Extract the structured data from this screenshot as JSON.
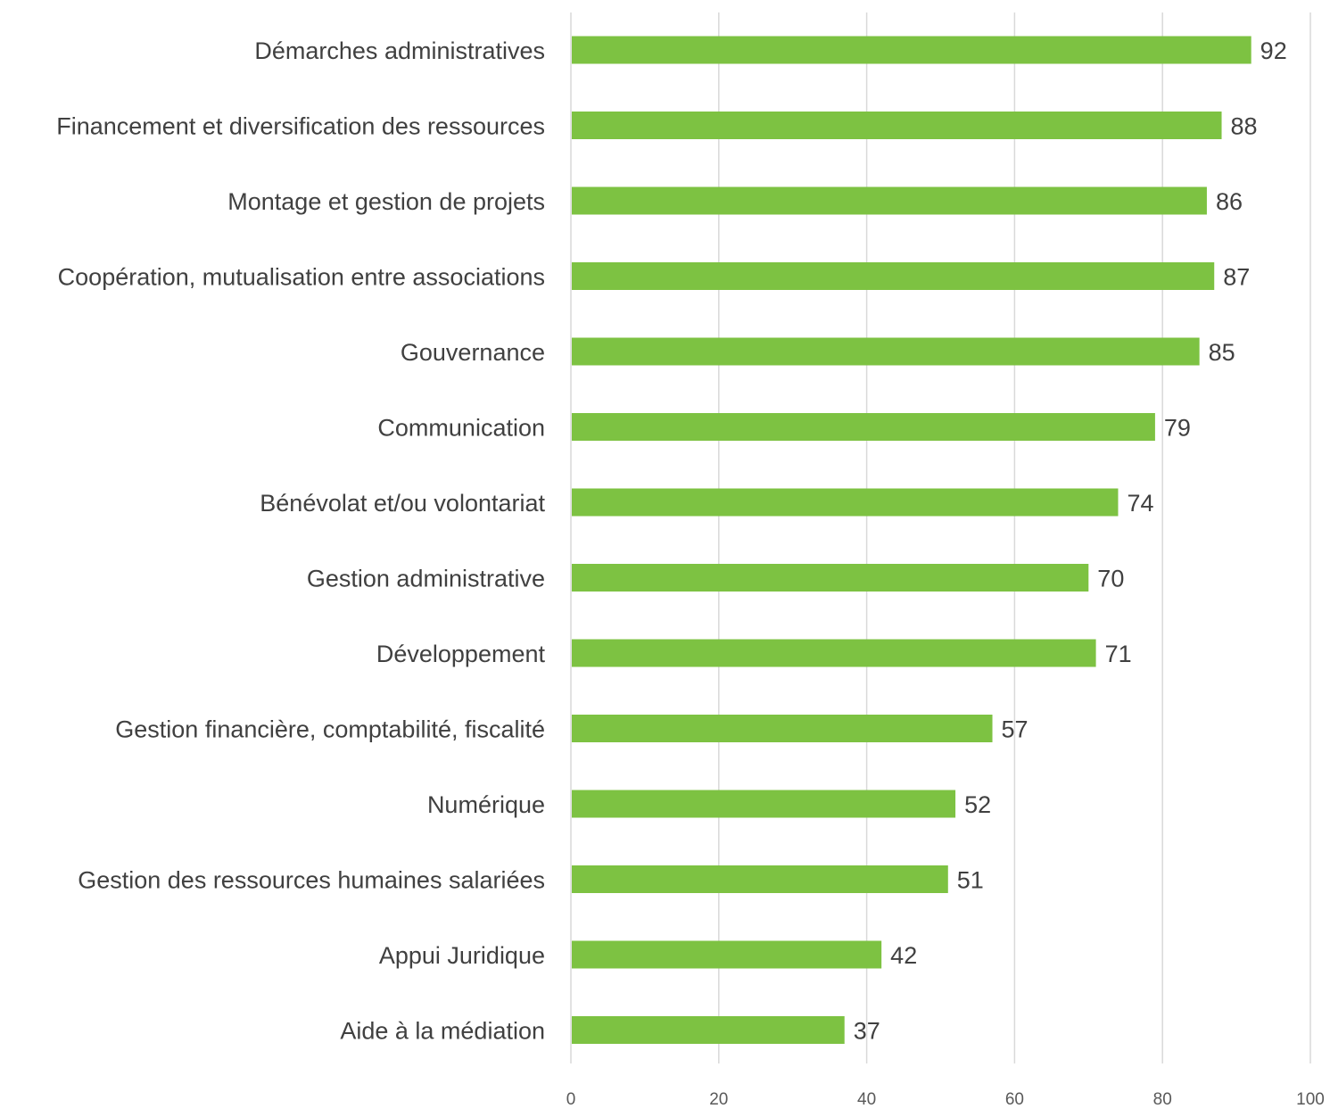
{
  "chart_data": {
    "type": "bar",
    "orientation": "horizontal",
    "categories": [
      "Démarches administratives",
      "Financement et diversification des ressources",
      "Montage et gestion de projets",
      "Coopération, mutualisation entre associations",
      "Gouvernance",
      "Communication",
      "Bénévolat et/ou volontariat",
      "Gestion administrative",
      "Développement",
      "Gestion financière, comptabilité, fiscalité",
      "Numérique",
      "Gestion des ressources humaines salariées",
      "Appui Juridique",
      "Aide à la médiation"
    ],
    "values": [
      92,
      88,
      86,
      87,
      85,
      79,
      74,
      70,
      71,
      57,
      52,
      51,
      42,
      37
    ],
    "value_labels": [
      "92",
      "88",
      "86",
      "87",
      "85",
      "79",
      "74",
      "70",
      "71",
      "57",
      "52",
      "51",
      "42",
      "37"
    ],
    "xlim": [
      0,
      100
    ],
    "x_ticks": [
      0,
      20,
      40,
      60,
      80,
      100
    ],
    "x_tick_labels": [
      "0",
      "20",
      "40",
      "60",
      "80",
      "100"
    ],
    "grid": "vertical",
    "legend": "none",
    "bar_color": "#7dc242",
    "grid_color": "#d9d9d9",
    "text_color": "#404040"
  }
}
